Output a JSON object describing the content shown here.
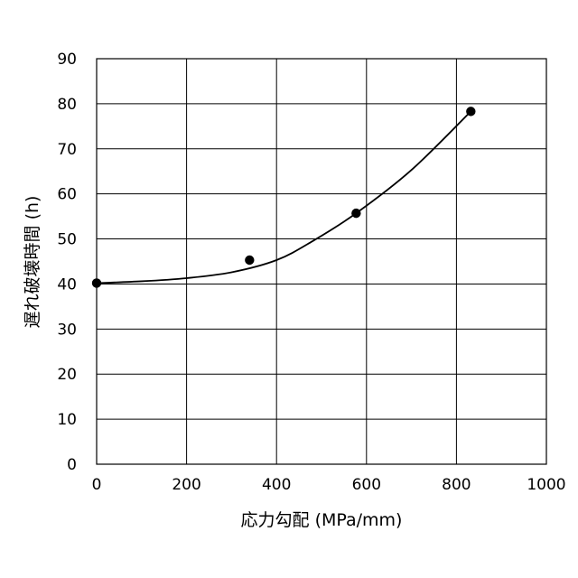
{
  "chart_data": {
    "type": "scatter",
    "title": "",
    "xlabel": "応力勾配 (MPa/mm)",
    "ylabel": "遅れ破壊時間 (h)",
    "xlim": [
      0,
      1000
    ],
    "ylim": [
      0,
      90
    ],
    "x_ticks": [
      0,
      200,
      400,
      600,
      800,
      1000
    ],
    "y_ticks": [
      0,
      10,
      20,
      30,
      40,
      50,
      60,
      70,
      80,
      90
    ],
    "grid": true,
    "legend": "none",
    "colors": {
      "points": "#000000",
      "curve": "#000000",
      "grid": "#000000",
      "background": "#ffffff"
    },
    "series": [
      {
        "kind": "points",
        "x": [
          0,
          340,
          577,
          832
        ],
        "y": [
          40.2,
          45.3,
          55.7,
          78.3
        ]
      },
      {
        "kind": "fit-curve",
        "x": [
          0,
          100,
          200,
          300,
          400,
          480,
          577,
          700,
          832
        ],
        "y": [
          40.2,
          40.6,
          41.3,
          42.6,
          45.3,
          49.5,
          55.7,
          65.3,
          78.3
        ]
      }
    ]
  }
}
